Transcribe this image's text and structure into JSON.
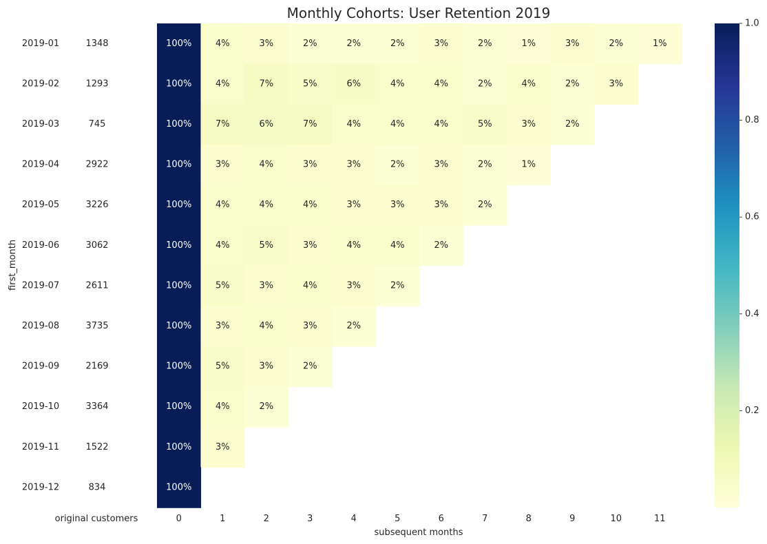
{
  "chart_data": {
    "type": "heatmap",
    "title": "Monthly Cohorts: User Retention 2019",
    "ylabel": "first_month",
    "xlabel": "subsequent months",
    "counts_label": "original customers",
    "rows": [
      "2019-01",
      "2019-02",
      "2019-03",
      "2019-04",
      "2019-05",
      "2019-06",
      "2019-07",
      "2019-08",
      "2019-09",
      "2019-10",
      "2019-11",
      "2019-12"
    ],
    "original_customers": [
      1348,
      1293,
      745,
      2922,
      3226,
      3062,
      2611,
      3735,
      2169,
      3364,
      1522,
      834
    ],
    "columns": [
      "0",
      "1",
      "2",
      "3",
      "4",
      "5",
      "6",
      "7",
      "8",
      "9",
      "10",
      "11"
    ],
    "values": [
      [
        1.0,
        0.04,
        0.03,
        0.02,
        0.02,
        0.02,
        0.03,
        0.02,
        0.01,
        0.03,
        0.02,
        0.01
      ],
      [
        1.0,
        0.04,
        0.07,
        0.05,
        0.06,
        0.04,
        0.04,
        0.02,
        0.04,
        0.02,
        0.03
      ],
      [
        1.0,
        0.07,
        0.06,
        0.07,
        0.04,
        0.04,
        0.04,
        0.05,
        0.03,
        0.02
      ],
      [
        1.0,
        0.03,
        0.04,
        0.03,
        0.03,
        0.02,
        0.03,
        0.02,
        0.01
      ],
      [
        1.0,
        0.04,
        0.04,
        0.04,
        0.03,
        0.03,
        0.03,
        0.02
      ],
      [
        1.0,
        0.04,
        0.05,
        0.03,
        0.04,
        0.04,
        0.02
      ],
      [
        1.0,
        0.05,
        0.03,
        0.04,
        0.03,
        0.02
      ],
      [
        1.0,
        0.03,
        0.04,
        0.03,
        0.02
      ],
      [
        1.0,
        0.05,
        0.03,
        0.02
      ],
      [
        1.0,
        0.04,
        0.02
      ],
      [
        1.0,
        0.03
      ],
      [
        1.0
      ]
    ],
    "value_format": "percent",
    "colormap": "YlGnBu",
    "colorbar": {
      "range": [
        0.0,
        1.0
      ],
      "ticks": [
        "0.2",
        "0.4",
        "0.6",
        "0.8",
        "1.0"
      ]
    },
    "colormap_stops": [
      "#ffffd9",
      "#edf8b1",
      "#c7e9b4",
      "#7fcdbb",
      "#41b6c4",
      "#1d91c0",
      "#225ea8",
      "#253494",
      "#081d58"
    ]
  }
}
